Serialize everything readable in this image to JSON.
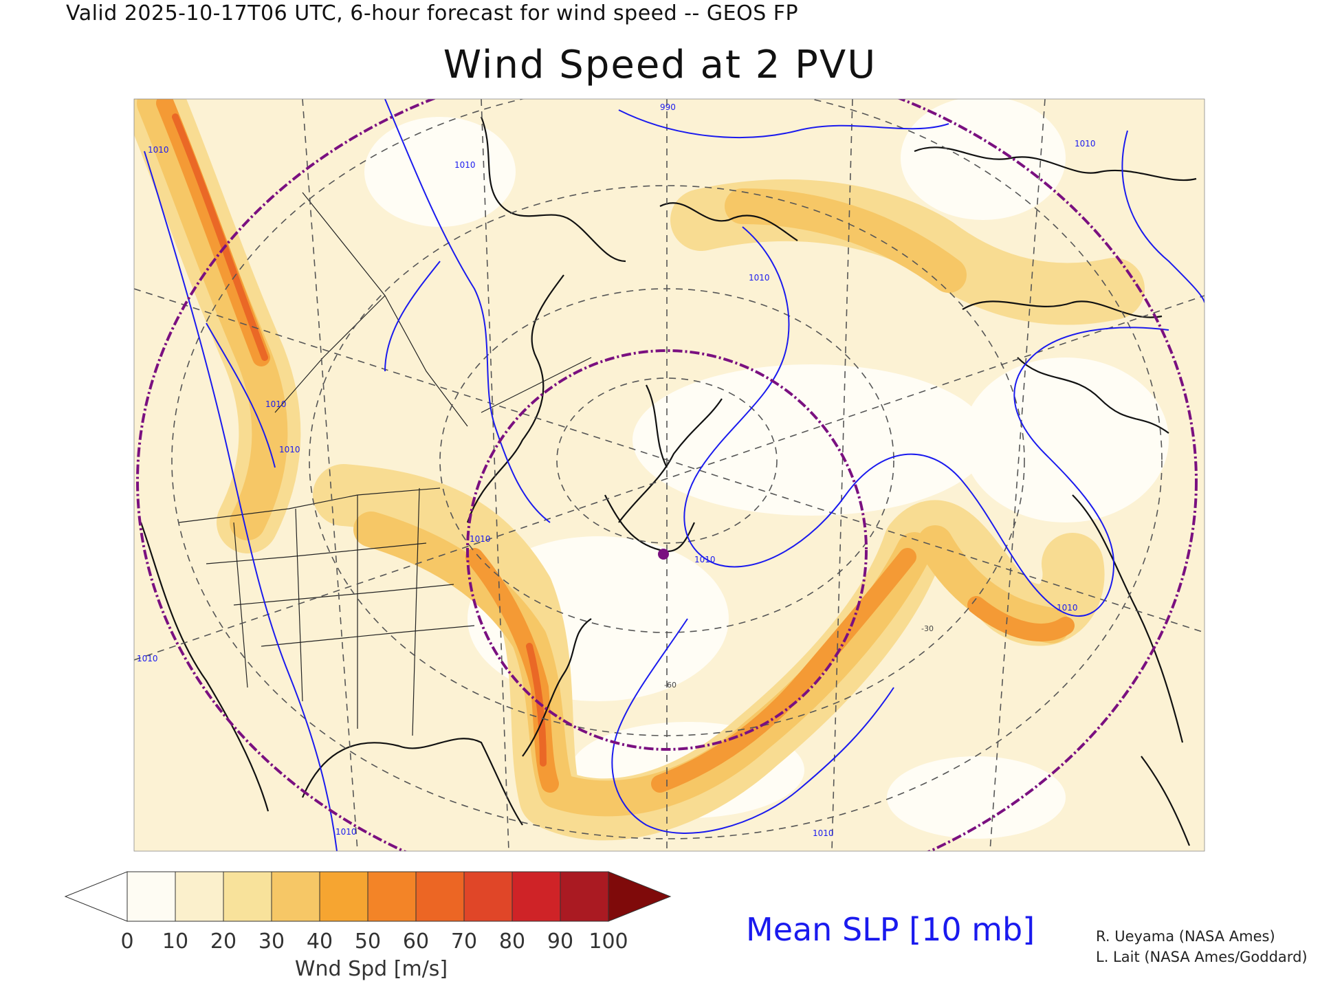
{
  "header": {
    "valid_line": "Valid 2025-10-17T06 UTC, 6-hour forecast for wind speed -- GEOS FP",
    "title": "Wind Speed at 2 PVU"
  },
  "map": {
    "field": "wind speed at 2 PVU",
    "overlay": "mean sea level pressure isobars",
    "contour_labels": [
      "1010",
      "1010",
      "1010",
      "1010",
      "1010",
      "1010",
      "1010",
      "990",
      "1010",
      "1010",
      "1010",
      "1010",
      "1010"
    ],
    "grid_labels": [
      "-60",
      "-30"
    ],
    "colors": {
      "isobar": "#1a1aee",
      "boundary": "#111111",
      "graticule": "#555555",
      "great_circle": "#7a1080",
      "marker": "#7a1080"
    }
  },
  "colorbar": {
    "ticks": [
      "0",
      "10",
      "20",
      "30",
      "40",
      "50",
      "60",
      "70",
      "80",
      "90",
      "100"
    ],
    "label": "Wnd Spd [m/s]",
    "colors": [
      "#fefcf3",
      "#fbf0cc",
      "#f8e29b",
      "#f6c766",
      "#f6a531",
      "#f38427",
      "#ec6624",
      "#e04628",
      "#cf2327",
      "#aa1a22",
      "#7f0a0a"
    ],
    "extends": "both"
  },
  "legend": {
    "slp_label": "Mean SLP [10 mb]"
  },
  "credits": {
    "line1": "R. Ueyama (NASA Ames)",
    "line2": "L. Lait (NASA Ames/Goddard)"
  }
}
